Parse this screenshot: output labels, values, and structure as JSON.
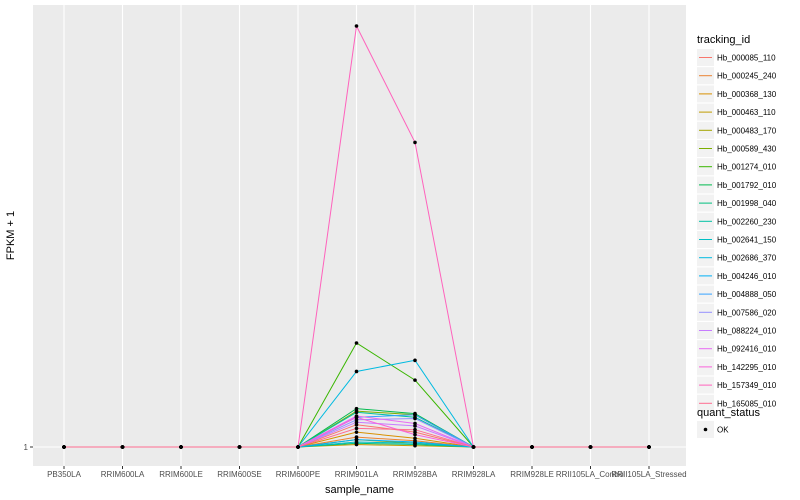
{
  "chart_data": {
    "type": "line",
    "xlabel": "sample_name",
    "ylabel": "FPKM + 1",
    "categories": [
      "PB350LA",
      "RRIM600LA",
      "RRIM600LE",
      "RRIM600SE",
      "RRIM600PE",
      "RRIM901LA",
      "RRIM928BA",
      "RRIM928LA",
      "RRIM928LE",
      "RRII105LA_Control",
      "RRII105LA_Stressed"
    ],
    "y_tick_labels": [
      "1"
    ],
    "ylim": [
      0,
      18.5
    ],
    "grid": true,
    "legend_position": "right",
    "legend_title": "tracking_id",
    "series": [
      {
        "name": "Hb_000085_110",
        "color": "#F8766D",
        "values": [
          1,
          1,
          1,
          1,
          1,
          1.9,
          1.6,
          1,
          1,
          1,
          1
        ]
      },
      {
        "name": "Hb_000245_240",
        "color": "#EA8331",
        "values": [
          1,
          1,
          1,
          1,
          1,
          1.4,
          1.25,
          1,
          1,
          1,
          1
        ]
      },
      {
        "name": "Hb_000368_130",
        "color": "#D89000",
        "values": [
          1,
          1,
          1,
          1,
          1,
          1.6,
          1.35,
          1,
          1,
          1,
          1
        ]
      },
      {
        "name": "Hb_000463_110",
        "color": "#C09B00",
        "values": [
          1,
          1,
          1,
          1,
          1,
          1.1,
          1.05,
          1,
          1,
          1,
          1
        ]
      },
      {
        "name": "Hb_000483_170",
        "color": "#A3A500",
        "values": [
          1,
          1,
          1,
          1,
          1,
          1.3,
          1.15,
          1,
          1,
          1,
          1
        ]
      },
      {
        "name": "Hb_000589_430",
        "color": "#7CAE00",
        "values": [
          1,
          1,
          1,
          1,
          1,
          2.45,
          2.3,
          1,
          1,
          1,
          1
        ]
      },
      {
        "name": "Hb_001274_010",
        "color": "#39B600",
        "values": [
          1,
          1,
          1,
          1,
          1,
          5.2,
          3.7,
          1,
          1,
          1,
          1
        ]
      },
      {
        "name": "Hb_001792_010",
        "color": "#00BB4E",
        "values": [
          1,
          1,
          1,
          1,
          1,
          2.55,
          2.35,
          1,
          1,
          1,
          1
        ]
      },
      {
        "name": "Hb_001998_040",
        "color": "#00BF7D",
        "values": [
          1,
          1,
          1,
          1,
          1,
          1.15,
          1.1,
          1,
          1,
          1,
          1
        ]
      },
      {
        "name": "Hb_002260_230",
        "color": "#00C1A3",
        "values": [
          1,
          1,
          1,
          1,
          1,
          2.4,
          2.2,
          1,
          1,
          1,
          1
        ]
      },
      {
        "name": "Hb_002641_150",
        "color": "#00BFC4",
        "values": [
          1,
          1,
          1,
          1,
          1,
          1.2,
          1.15,
          1,
          1,
          1,
          1
        ]
      },
      {
        "name": "Hb_002686_370",
        "color": "#00BAE0",
        "values": [
          1,
          1,
          1,
          1,
          1,
          4.05,
          4.5,
          1,
          1,
          1,
          1
        ]
      },
      {
        "name": "Hb_004246_010",
        "color": "#00B0F6",
        "values": [
          1,
          1,
          1,
          1,
          1,
          1.3,
          1.2,
          1,
          1,
          1,
          1
        ]
      },
      {
        "name": "Hb_004888_050",
        "color": "#35A2FF",
        "values": [
          1,
          1,
          1,
          1,
          1,
          2.2,
          2.3,
          1,
          1,
          1,
          1
        ]
      },
      {
        "name": "Hb_007586_020",
        "color": "#9590FF",
        "values": [
          1,
          1,
          1,
          1,
          1,
          2.1,
          2.15,
          1,
          1,
          1,
          1
        ]
      },
      {
        "name": "Hb_088224_010",
        "color": "#C77CFF",
        "values": [
          1,
          1,
          1,
          1,
          1,
          2.0,
          1.85,
          1,
          1,
          1,
          1
        ]
      },
      {
        "name": "Hb_092416_010",
        "color": "#E76BF3",
        "values": [
          1,
          1,
          1,
          1,
          1,
          2.25,
          1.95,
          1,
          1,
          1,
          1
        ]
      },
      {
        "name": "Hb_142295_010",
        "color": "#FA62DB",
        "values": [
          1,
          1,
          1,
          1,
          1,
          2.2,
          1.5,
          1,
          1,
          1,
          1
        ]
      },
      {
        "name": "Hb_157349_010",
        "color": "#FF62BC",
        "values": [
          1,
          1,
          1,
          1,
          1,
          18.0,
          13.3,
          1,
          1,
          1,
          1
        ]
      },
      {
        "name": "Hb_165085_010",
        "color": "#FF6C91",
        "values": [
          1,
          1,
          1,
          1,
          1,
          1.75,
          1.7,
          1,
          1,
          1,
          1
        ]
      }
    ],
    "shape_legend": {
      "title": "quant_status",
      "items": [
        {
          "label": "OK"
        }
      ]
    }
  },
  "colors": {
    "panel_background": "#EBEBEB",
    "grid_major": "#FFFFFF",
    "point": "#000000"
  }
}
